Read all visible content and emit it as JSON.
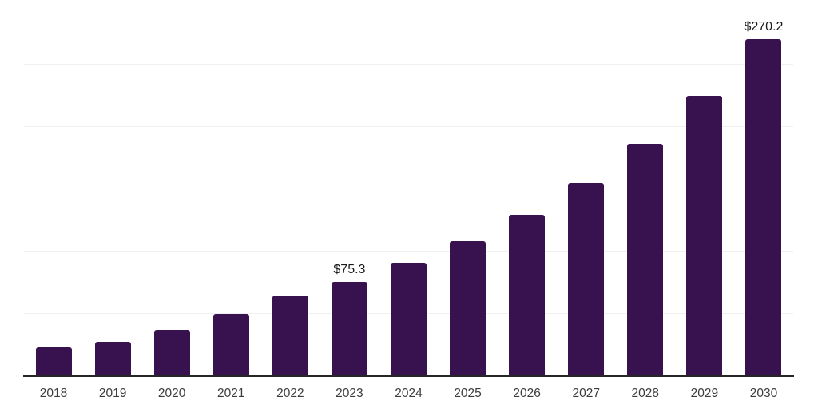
{
  "chart_data": {
    "type": "bar",
    "categories": [
      "2018",
      "2019",
      "2020",
      "2021",
      "2022",
      "2023",
      "2024",
      "2025",
      "2026",
      "2027",
      "2028",
      "2029",
      "2030"
    ],
    "values": [
      22.7,
      27.0,
      36.7,
      49.5,
      63.8,
      75.3,
      90.7,
      107.5,
      129.1,
      154.8,
      185.7,
      224.2,
      270.2
    ],
    "data_labels": [
      {
        "index": 5,
        "text": "$75.3"
      },
      {
        "index": 12,
        "text": "$270.2"
      }
    ],
    "title": "",
    "xlabel": "",
    "ylabel": "",
    "ylim": [
      0,
      300
    ],
    "grid_step": 50,
    "grid": true,
    "legend": false,
    "bar_color": "#37124E",
    "axis_color": "#262626",
    "gridline_color": "#f0f0f0",
    "data_label_color": "#1a1a1a",
    "tick_label_color": "#3c3c3c",
    "background_color": "#ffffff"
  }
}
